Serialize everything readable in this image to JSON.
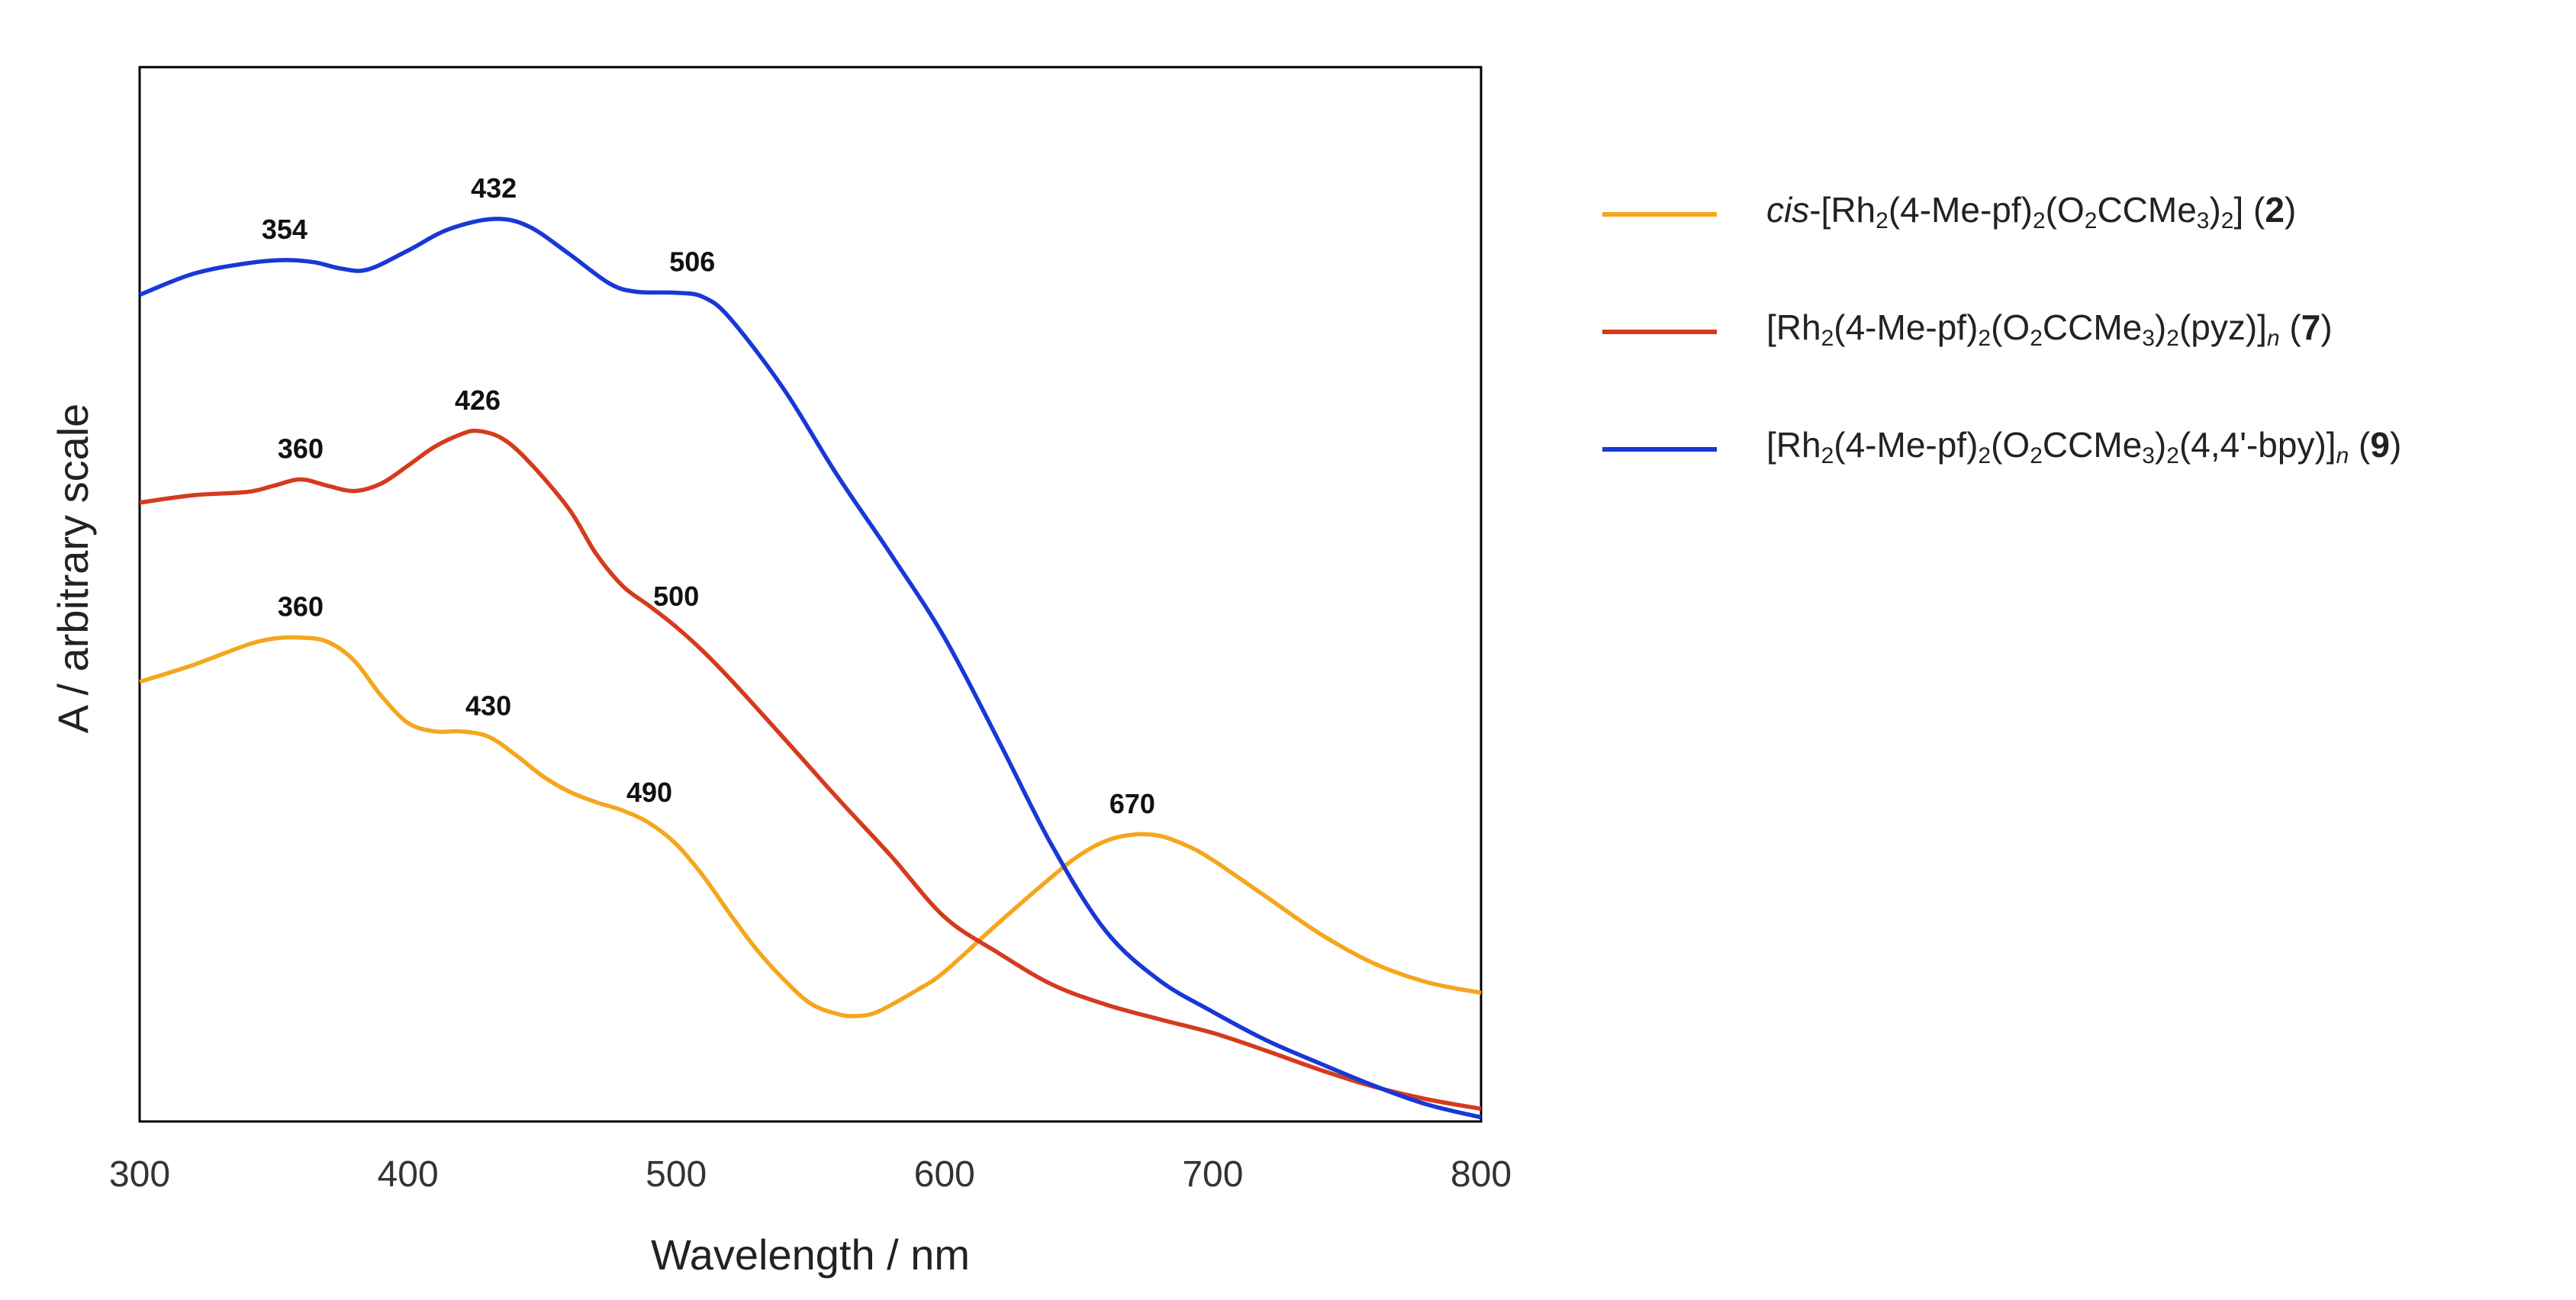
{
  "chart_data": {
    "type": "line",
    "title": "",
    "xlabel": "Wavelength / nm",
    "ylabel": "A / arbitrary scale",
    "xlim": [
      300,
      800
    ],
    "ylim": [
      0,
      1
    ],
    "xticks": [
      "300",
      "400",
      "500",
      "600",
      "700",
      "800"
    ],
    "grid": false,
    "legend_position": "right",
    "series": [
      {
        "id": "s2",
        "name": "cis-[Rh2(4-Me-pf)2(O2CCMe3)2] (2)",
        "color": "#f5a61d",
        "legend_parts": [
          {
            "t": "cis",
            "s": "i"
          },
          {
            "t": "-[Rh"
          },
          {
            "t": "2",
            "s": "sub"
          },
          {
            "t": "(4-Me-pf)"
          },
          {
            "t": "2",
            "s": "sub"
          },
          {
            "t": "(O"
          },
          {
            "t": "2",
            "s": "sub"
          },
          {
            "t": "CCMe"
          },
          {
            "t": "3",
            "s": "sub"
          },
          {
            "t": ")"
          },
          {
            "t": "2",
            "s": "sub"
          },
          {
            "t": "] ("
          },
          {
            "t": "2",
            "s": "b"
          },
          {
            "t": ")"
          }
        ],
        "x": [
          300,
          320,
          340,
          350,
          360,
          370,
          380,
          390,
          400,
          410,
          420,
          430,
          440,
          450,
          460,
          470,
          480,
          490,
          500,
          510,
          520,
          530,
          540,
          550,
          560,
          567,
          575,
          590,
          600,
          620,
          640,
          650,
          660,
          670,
          680,
          690,
          700,
          720,
          740,
          760,
          780,
          800
        ],
        "y": [
          0.417,
          0.433,
          0.452,
          0.458,
          0.459,
          0.455,
          0.437,
          0.404,
          0.378,
          0.37,
          0.37,
          0.365,
          0.348,
          0.328,
          0.313,
          0.303,
          0.295,
          0.283,
          0.263,
          0.233,
          0.197,
          0.163,
          0.135,
          0.112,
          0.102,
          0.1,
          0.104,
          0.125,
          0.142,
          0.188,
          0.232,
          0.252,
          0.266,
          0.272,
          0.271,
          0.262,
          0.248,
          0.213,
          0.178,
          0.15,
          0.132,
          0.122
        ],
        "peaks": [
          {
            "x": 360,
            "y": 0.459,
            "label": "360"
          },
          {
            "x": 430,
            "y": 0.365,
            "label": "430"
          },
          {
            "x": 490,
            "y": 0.283,
            "label": "490"
          },
          {
            "x": 670,
            "y": 0.272,
            "label": "670"
          }
        ]
      },
      {
        "id": "s7",
        "name": "[Rh2(4-Me-pf)2(O2CCMe3)2(pyz)]n (7)",
        "color": "#d63a1e",
        "legend_parts": [
          {
            "t": "[Rh"
          },
          {
            "t": "2",
            "s": "sub"
          },
          {
            "t": "(4-Me-pf)"
          },
          {
            "t": "2",
            "s": "sub"
          },
          {
            "t": "(O"
          },
          {
            "t": "2",
            "s": "sub"
          },
          {
            "t": "CCMe"
          },
          {
            "t": "3",
            "s": "sub"
          },
          {
            "t": ")"
          },
          {
            "t": "2",
            "s": "sub"
          },
          {
            "t": "(pyz)]"
          },
          {
            "t": "n",
            "s": "subi"
          },
          {
            "t": " ("
          },
          {
            "t": "7",
            "s": "b"
          },
          {
            "t": ")"
          }
        ],
        "x": [
          300,
          320,
          340,
          350,
          360,
          370,
          380,
          390,
          400,
          410,
          420,
          426,
          435,
          445,
          460,
          470,
          480,
          490,
          500,
          510,
          520,
          540,
          560,
          580,
          600,
          620,
          640,
          660,
          680,
          700,
          720,
          740,
          760,
          780,
          800
        ],
        "y": [
          0.587,
          0.594,
          0.597,
          0.603,
          0.609,
          0.603,
          0.598,
          0.605,
          0.622,
          0.64,
          0.652,
          0.655,
          0.648,
          0.626,
          0.581,
          0.539,
          0.508,
          0.489,
          0.469,
          0.446,
          0.42,
          0.364,
          0.307,
          0.252,
          0.194,
          0.16,
          0.13,
          0.111,
          0.097,
          0.084,
          0.067,
          0.049,
          0.033,
          0.021,
          0.012
        ],
        "peaks": [
          {
            "x": 360,
            "y": 0.609,
            "label": "360"
          },
          {
            "x": 426,
            "y": 0.655,
            "label": "426"
          },
          {
            "x": 500,
            "y": 0.469,
            "label": "500"
          }
        ]
      },
      {
        "id": "s9",
        "name": "[Rh2(4-Me-pf)2(O2CCMe3)2(4,4'-bpy)]n (9)",
        "color": "#1838d6",
        "legend_parts": [
          {
            "t": "[Rh"
          },
          {
            "t": "2",
            "s": "sub"
          },
          {
            "t": "(4-Me-pf)"
          },
          {
            "t": "2",
            "s": "sub"
          },
          {
            "t": "(O"
          },
          {
            "t": "2",
            "s": "sub"
          },
          {
            "t": "CCMe"
          },
          {
            "t": "3",
            "s": "sub"
          },
          {
            "t": ")"
          },
          {
            "t": "2",
            "s": "sub"
          },
          {
            "t": "(4,4'-bpy)]"
          },
          {
            "t": "n",
            "s": "subi"
          },
          {
            "t": " ("
          },
          {
            "t": "9",
            "s": "b"
          },
          {
            "t": ")"
          }
        ],
        "x": [
          300,
          320,
          340,
          354,
          365,
          375,
          385,
          400,
          415,
          432,
          445,
          460,
          475,
          485,
          500,
          510,
          520,
          540,
          560,
          580,
          600,
          620,
          640,
          660,
          680,
          700,
          720,
          740,
          760,
          780,
          800
        ],
        "y": [
          0.784,
          0.804,
          0.814,
          0.817,
          0.815,
          0.809,
          0.808,
          0.826,
          0.846,
          0.856,
          0.849,
          0.823,
          0.795,
          0.787,
          0.786,
          0.782,
          0.762,
          0.695,
          0.613,
          0.538,
          0.459,
          0.362,
          0.262,
          0.181,
          0.134,
          0.104,
          0.077,
          0.055,
          0.034,
          0.016,
          0.004
        ],
        "peaks": [
          {
            "x": 354,
            "y": 0.817,
            "label": "354"
          },
          {
            "x": 432,
            "y": 0.856,
            "label": "432"
          },
          {
            "x": 506,
            "y": 0.786,
            "label": "506"
          }
        ]
      }
    ]
  }
}
